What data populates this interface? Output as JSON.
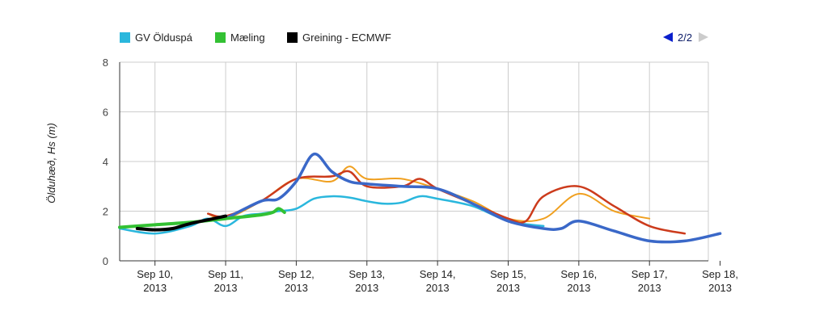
{
  "legend": {
    "items": [
      {
        "label": "GV Ölduspá",
        "color": "#2ab7dd"
      },
      {
        "label": "Mæling",
        "color": "#33c133"
      },
      {
        "label": "Greining - ECMWF",
        "color": "#000000"
      }
    ],
    "pager": {
      "text": "2/2",
      "prev_icon": "triangle-left-icon",
      "next_icon": "triangle-right-icon"
    }
  },
  "chart_data": {
    "type": "line",
    "title": "",
    "xlabel": "",
    "ylabel": "Ölduhæð, Hs (m)",
    "ylim": [
      0,
      8
    ],
    "yticks": [
      0,
      2,
      4,
      6,
      8
    ],
    "xlim": [
      "2013-09-09T12:00",
      "2013-09-17T20:00"
    ],
    "xticks": [
      {
        "x": "2013-09-10T00:00",
        "label": [
          "Sep 10,",
          "2013"
        ]
      },
      {
        "x": "2013-09-11T00:00",
        "label": [
          "Sep 11,",
          "2013"
        ]
      },
      {
        "x": "2013-09-12T00:00",
        "label": [
          "Sep 12,",
          "2013"
        ]
      },
      {
        "x": "2013-09-13T00:00",
        "label": [
          "Sep 13,",
          "2013"
        ]
      },
      {
        "x": "2013-09-14T00:00",
        "label": [
          "Sep 14,",
          "2013"
        ]
      },
      {
        "x": "2013-09-15T00:00",
        "label": [
          "Sep 15,",
          "2013"
        ]
      },
      {
        "x": "2013-09-16T00:00",
        "label": [
          "Sep 16,",
          "2013"
        ]
      },
      {
        "x": "2013-09-17T00:00",
        "label": [
          "Sep 17,",
          "2013"
        ]
      },
      {
        "x": "2013-09-18T00:00",
        "label": [
          "Sep 18,",
          "2013"
        ]
      }
    ],
    "grid": true,
    "legend_position": "top-left",
    "series": [
      {
        "name": "GV Ölduspá",
        "color": "#2ab7dd",
        "width": 2.5,
        "points": [
          [
            "2013-09-09T12:00",
            1.3
          ],
          [
            "2013-09-10T00:00",
            1.1
          ],
          [
            "2013-09-10T12:00",
            1.4
          ],
          [
            "2013-09-10T18:00",
            1.7
          ],
          [
            "2013-09-11T00:00",
            1.4
          ],
          [
            "2013-09-11T06:00",
            1.8
          ],
          [
            "2013-09-11T12:00",
            1.9
          ],
          [
            "2013-09-11T18:00",
            2.0
          ],
          [
            "2013-09-12T00:00",
            2.1
          ],
          [
            "2013-09-12T06:00",
            2.5
          ],
          [
            "2013-09-12T12:00",
            2.6
          ],
          [
            "2013-09-12T18:00",
            2.55
          ],
          [
            "2013-09-13T00:00",
            2.4
          ],
          [
            "2013-09-13T06:00",
            2.3
          ],
          [
            "2013-09-13T12:00",
            2.35
          ],
          [
            "2013-09-13T18:00",
            2.6
          ],
          [
            "2013-09-14T00:00",
            2.5
          ],
          [
            "2013-09-14T12:00",
            2.2
          ],
          [
            "2013-09-15T00:00",
            1.6
          ],
          [
            "2013-09-15T12:00",
            1.4
          ]
        ]
      },
      {
        "name": "",
        "color": "#f0a020",
        "width": 2,
        "points": [
          [
            "2013-09-10T18:00",
            1.9
          ],
          [
            "2013-09-11T00:00",
            1.7
          ],
          [
            "2013-09-11T12:00",
            2.4
          ],
          [
            "2013-09-12T00:00",
            3.3
          ],
          [
            "2013-09-12T12:00",
            3.2
          ],
          [
            "2013-09-12T18:00",
            3.8
          ],
          [
            "2013-09-13T00:00",
            3.3
          ],
          [
            "2013-09-13T12:00",
            3.3
          ],
          [
            "2013-09-14T00:00",
            2.9
          ],
          [
            "2013-09-14T12:00",
            2.4
          ],
          [
            "2013-09-15T00:00",
            1.7
          ],
          [
            "2013-09-15T12:00",
            1.7
          ],
          [
            "2013-09-16T00:00",
            2.7
          ],
          [
            "2013-09-16T12:00",
            2.0
          ],
          [
            "2013-09-17T00:00",
            1.7
          ]
        ]
      },
      {
        "name": "",
        "color": "#cc3b1c",
        "width": 2.5,
        "points": [
          [
            "2013-09-10T18:00",
            1.9
          ],
          [
            "2013-09-11T00:00",
            1.8
          ],
          [
            "2013-09-11T12:00",
            2.4
          ],
          [
            "2013-09-12T00:00",
            3.3
          ],
          [
            "2013-09-12T12:00",
            3.4
          ],
          [
            "2013-09-12T18:00",
            3.6
          ],
          [
            "2013-09-13T00:00",
            3.0
          ],
          [
            "2013-09-13T12:00",
            3.0
          ],
          [
            "2013-09-13T18:00",
            3.3
          ],
          [
            "2013-09-14T00:00",
            2.9
          ],
          [
            "2013-09-14T12:00",
            2.3
          ],
          [
            "2013-09-15T00:00",
            1.7
          ],
          [
            "2013-09-15T06:00",
            1.6
          ],
          [
            "2013-09-15T12:00",
            2.6
          ],
          [
            "2013-09-16T00:00",
            3.0
          ],
          [
            "2013-09-16T12:00",
            2.2
          ],
          [
            "2013-09-17T00:00",
            1.4
          ],
          [
            "2013-09-17T12:00",
            1.1
          ]
        ]
      },
      {
        "name": "",
        "color": "#3a68c8",
        "width": 3.5,
        "points": [
          [
            "2013-09-11T00:00",
            1.7
          ],
          [
            "2013-09-11T12:00",
            2.4
          ],
          [
            "2013-09-11T18:00",
            2.5
          ],
          [
            "2013-09-12T00:00",
            3.2
          ],
          [
            "2013-09-12T06:00",
            4.3
          ],
          [
            "2013-09-12T12:00",
            3.6
          ],
          [
            "2013-09-12T18:00",
            3.2
          ],
          [
            "2013-09-13T00:00",
            3.1
          ],
          [
            "2013-09-13T12:00",
            3.0
          ],
          [
            "2013-09-14T00:00",
            2.9
          ],
          [
            "2013-09-14T12:00",
            2.3
          ],
          [
            "2013-09-15T00:00",
            1.6
          ],
          [
            "2013-09-15T12:00",
            1.3
          ],
          [
            "2013-09-15T18:00",
            1.3
          ],
          [
            "2013-09-16T00:00",
            1.6
          ],
          [
            "2013-09-16T12:00",
            1.2
          ],
          [
            "2013-09-17T00:00",
            0.8
          ],
          [
            "2013-09-17T12:00",
            0.8
          ],
          [
            "2013-09-18T00:00",
            1.1
          ]
        ]
      },
      {
        "name": "Mæling",
        "color": "#33c133",
        "width": 4,
        "points": [
          [
            "2013-09-09T12:00",
            1.35
          ],
          [
            "2013-09-10T00:00",
            1.45
          ],
          [
            "2013-09-10T12:00",
            1.55
          ],
          [
            "2013-09-11T00:00",
            1.7
          ],
          [
            "2013-09-11T12:00",
            1.85
          ],
          [
            "2013-09-11T16:00",
            1.95
          ],
          [
            "2013-09-11T18:00",
            2.1
          ],
          [
            "2013-09-11T20:00",
            1.95
          ]
        ]
      },
      {
        "name": "Greining - ECMWF",
        "color": "#000000",
        "width": 4,
        "points": [
          [
            "2013-09-09T18:00",
            1.3
          ],
          [
            "2013-09-10T00:00",
            1.25
          ],
          [
            "2013-09-10T06:00",
            1.3
          ],
          [
            "2013-09-10T12:00",
            1.5
          ],
          [
            "2013-09-11T00:00",
            1.8
          ]
        ]
      }
    ]
  }
}
